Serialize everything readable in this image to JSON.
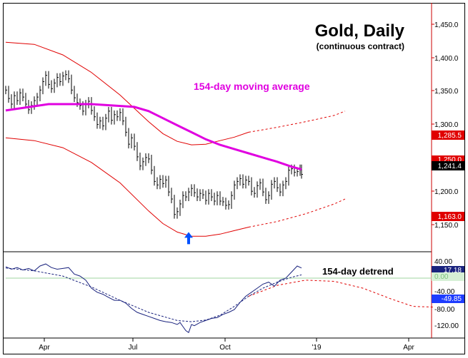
{
  "chart_data": [
    {
      "type": "line",
      "title": "Gold, Daily",
      "subtitle": "(continuous contract)",
      "annotation": "154-day moving average",
      "y_ticks": [
        "1,450.0",
        "1,400.0",
        "1,350.0",
        "1,300.0",
        "1,200.0",
        "1,150.0"
      ],
      "ylim": [
        1133,
        1480
      ],
      "x_tick_labels": [
        "Apr",
        "Jul",
        "Oct",
        "'19",
        "Apr"
      ],
      "price_labels": [
        {
          "value": 1285.5,
          "text": "1,285.5",
          "color": "#e00000"
        },
        {
          "value": 1250.0,
          "text": "1,250.0",
          "color": "#e00000"
        },
        {
          "value": 1241.4,
          "text": "1,241.4",
          "color": "#000000"
        },
        {
          "value": 1163.0,
          "text": "1,163.0",
          "color": "#e00000"
        }
      ],
      "series": [
        {
          "name": "Gold price (daily bars)",
          "color": "#000000",
          "x": [
            0,
            4,
            8,
            12,
            16,
            20,
            24,
            28,
            32,
            36,
            40,
            44,
            48,
            52,
            56,
            60,
            64,
            68,
            72,
            76,
            80,
            84,
            88,
            92,
            96,
            100,
            104,
            108,
            112,
            116,
            120,
            124,
            128,
            132,
            136,
            140,
            144,
            148,
            152,
            156,
            160,
            164,
            168,
            172,
            176,
            180,
            184,
            188,
            192,
            196,
            200,
            204,
            208,
            212,
            216,
            220,
            224,
            228,
            232,
            236,
            240,
            244,
            248,
            252,
            256,
            260,
            264,
            268,
            272,
            276,
            280,
            284,
            288,
            292,
            296,
            300,
            304,
            308,
            312,
            316,
            320,
            324,
            328,
            332,
            336,
            340,
            344,
            348,
            352,
            356,
            360,
            364,
            368,
            372,
            376,
            380,
            384,
            388,
            392,
            396,
            400,
            404,
            408,
            412,
            414
          ],
          "values": [
            1360,
            1348,
            1340,
            1352,
            1345,
            1356,
            1350,
            1340,
            1332,
            1338,
            1345,
            1350,
            1360,
            1372,
            1381,
            1368,
            1362,
            1370,
            1378,
            1372,
            1380,
            1382,
            1376,
            1360,
            1349,
            1342,
            1338,
            1330,
            1340,
            1344,
            1331,
            1322,
            1311,
            1316,
            1309,
            1320,
            1330,
            1317,
            1325,
            1322,
            1328,
            1316,
            1300,
            1283,
            1292,
            1280,
            1265,
            1252,
            1258,
            1264,
            1262,
            1246,
            1230,
            1225,
            1233,
            1227,
            1232,
            1215,
            1205,
            1183,
            1187,
            1198,
            1210,
            1208,
            1215,
            1220,
            1214,
            1208,
            1213,
            1211,
            1203,
            1213,
            1208,
            1202,
            1210,
            1202,
            1201,
            1196,
            1197,
            1210,
            1225,
            1230,
            1234,
            1226,
            1232,
            1230,
            1216,
            1213,
            1224,
            1228,
            1215,
            1204,
            1210,
            1226,
            1230,
            1221,
            1215,
            1225,
            1230,
            1246,
            1248,
            1243,
            1244,
            1248,
            1240
          ]
        },
        {
          "name": "154-day moving average",
          "color": "#e000e0",
          "x": [
            0,
            60,
            120,
            180,
            200,
            220,
            240,
            260,
            280,
            300,
            320,
            340,
            360,
            380,
            400,
            414
          ],
          "values": [
            1331,
            1340,
            1340,
            1336,
            1330,
            1320,
            1310,
            1300,
            1290,
            1282,
            1276,
            1270,
            1264,
            1258,
            1251,
            1247
          ]
        },
        {
          "name": "Upper band",
          "color": "#e00000",
          "x": [
            0,
            40,
            80,
            120,
            160,
            200,
            220,
            240,
            260,
            280,
            300,
            320,
            340
          ],
          "values": [
            1428,
            1425,
            1410,
            1385,
            1353,
            1315,
            1298,
            1287,
            1282,
            1283,
            1288,
            1293,
            1300
          ]
        },
        {
          "name": "Upper band projection (dashed)",
          "color": "#e00000",
          "x": [
            340,
            380,
            420,
            460,
            475
          ],
          "values": [
            1300,
            1307,
            1315,
            1324,
            1330
          ]
        },
        {
          "name": "Lower band",
          "color": "#e00000",
          "x": [
            0,
            40,
            80,
            120,
            160,
            200,
            220,
            240,
            260,
            280,
            300,
            320,
            340
          ],
          "values": [
            1292,
            1288,
            1278,
            1257,
            1228,
            1188,
            1170,
            1158,
            1152,
            1152,
            1155,
            1160,
            1165
          ]
        },
        {
          "name": "Lower band projection (dashed)",
          "color": "#e00000",
          "x": [
            340,
            380,
            420,
            460,
            475
          ],
          "values": [
            1165,
            1173,
            1184,
            1198,
            1205
          ]
        }
      ],
      "markers": [
        {
          "type": "arrow-up",
          "x": 256,
          "value": 1158,
          "color": "#0050ff"
        }
      ]
    },
    {
      "type": "line",
      "annotation": "154-day detrend",
      "y_ticks": [
        "40.00",
        "0.00",
        "-40.00",
        "-80.00",
        "-120.00"
      ],
      "ylim": [
        -145,
        60
      ],
      "value_labels": [
        {
          "value": 17.18,
          "text": "17.18",
          "color": "#1a237e"
        },
        {
          "value": 0.0,
          "text": "0.00",
          "color": "#7cc47c"
        },
        {
          "value": -49.85,
          "text": "-49.85",
          "color": "#1e3cff"
        }
      ],
      "series": [
        {
          "name": "Detrend oscillator",
          "color": "#1a237e",
          "x": [
            0,
            8,
            16,
            24,
            32,
            40,
            48,
            56,
            64,
            72,
            80,
            88,
            96,
            104,
            112,
            120,
            128,
            136,
            144,
            152,
            160,
            168,
            176,
            184,
            192,
            200,
            208,
            216,
            224,
            232,
            240,
            244,
            248,
            252,
            256,
            260,
            264,
            272,
            280,
            288,
            296,
            304,
            312,
            320,
            328,
            336,
            344,
            352,
            360,
            368,
            376,
            384,
            392,
            400,
            408,
            414
          ],
          "values": [
            28,
            22,
            26,
            20,
            24,
            18,
            30,
            35,
            26,
            22,
            24,
            26,
            10,
            5,
            -5,
            -25,
            -35,
            -40,
            -48,
            -55,
            -55,
            -62,
            -75,
            -85,
            -90,
            -95,
            -100,
            -105,
            -108,
            -110,
            -115,
            -110,
            -120,
            -130,
            -135,
            -115,
            -118,
            -110,
            -105,
            -100,
            -98,
            -90,
            -85,
            -78,
            -60,
            -45,
            -35,
            -25,
            -15,
            -10,
            -20,
            -5,
            0,
            15,
            30,
            25
          ]
        },
        {
          "name": "Detrend cycle (dashed)",
          "color": "#1a237e",
          "x": [
            0,
            40,
            80,
            120,
            160,
            200,
            240,
            260,
            280,
            300,
            320,
            340,
            360,
            380,
            400,
            414
          ],
          "values": [
            25,
            18,
            5,
            -22,
            -55,
            -85,
            -105,
            -108,
            -104,
            -92,
            -70,
            -45,
            -25,
            -10,
            2,
            8
          ]
        },
        {
          "name": "Detrend cycle projection (dashed)",
          "color": "#e00000",
          "x": [
            340,
            380,
            420,
            460,
            500,
            540,
            570,
            600
          ],
          "values": [
            -45,
            -18,
            -5,
            -8,
            -25,
            -52,
            -70,
            -72
          ]
        }
      ]
    }
  ]
}
